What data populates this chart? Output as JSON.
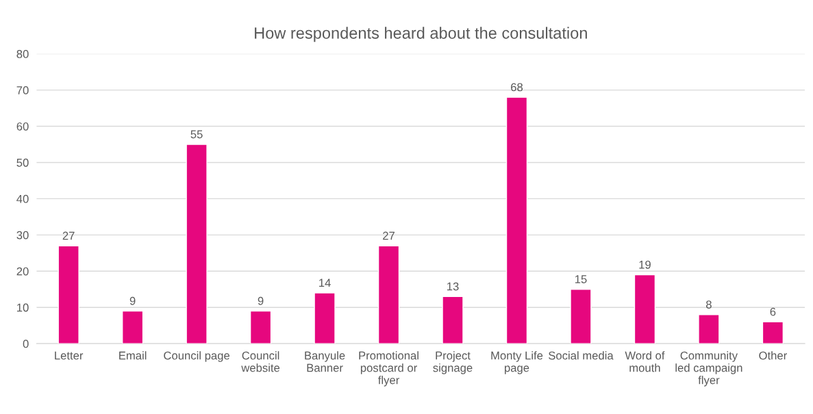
{
  "chart_data": {
    "type": "bar",
    "title": "How respondents heard about the consultation",
    "categories": [
      "Letter",
      "Email",
      "Council page",
      "Council website",
      "Banyule Banner",
      "Promotional postcard or flyer",
      "Project signage",
      "Monty Life page",
      "Social media",
      "Word of mouth",
      "Community led campaign flyer",
      "Other"
    ],
    "values": [
      27,
      9,
      55,
      9,
      14,
      27,
      13,
      68,
      15,
      19,
      8,
      6
    ],
    "color": "#e6077e",
    "ylim": [
      0,
      80
    ],
    "yticks": [
      0,
      10,
      20,
      30,
      40,
      50,
      60,
      70,
      80
    ],
    "grid": "y",
    "data_labels": true
  }
}
